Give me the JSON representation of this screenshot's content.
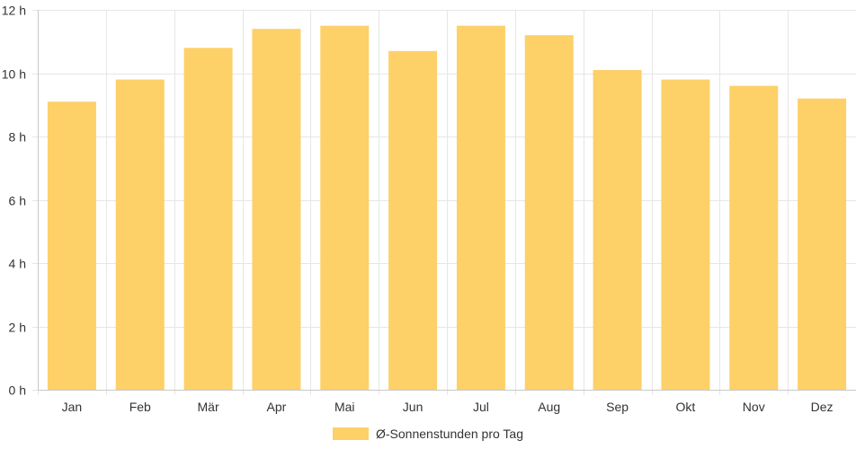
{
  "chart_data": {
    "type": "bar",
    "title": "",
    "xlabel": "",
    "ylabel": "",
    "categories": [
      "Jan",
      "Feb",
      "Mär",
      "Apr",
      "Mai",
      "Jun",
      "Jul",
      "Aug",
      "Sep",
      "Okt",
      "Nov",
      "Dez"
    ],
    "series": [
      {
        "name": "Ø-Sonnenstunden pro Tag",
        "values": [
          9.1,
          9.8,
          10.8,
          11.4,
          11.5,
          10.7,
          11.5,
          11.2,
          10.1,
          9.8,
          9.6,
          9.2
        ]
      }
    ],
    "ylim": [
      0,
      12
    ],
    "y_ticks": [
      0,
      2,
      4,
      6,
      8,
      10,
      12
    ],
    "y_tick_suffix": " h",
    "grid": true,
    "legend_position": "bottom",
    "colors": {
      "bar": "#fdd068",
      "grid": "#e6e6e6",
      "axis": "#c8c8c8",
      "text": "#333333"
    }
  }
}
